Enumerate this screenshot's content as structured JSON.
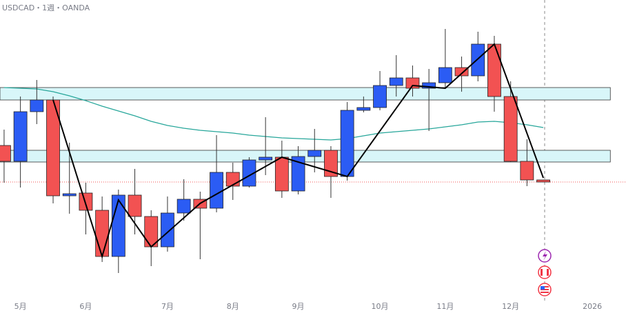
{
  "chart_data": {
    "type": "candlestick",
    "title": "USDCAD・1週・OANDA",
    "up_color": "#2b5cf4",
    "down_color": "#f25252",
    "open": [
      243,
      220,
      292,
      309,
      170,
      174,
      149,
      82,
      171,
      140,
      96,
      145,
      165,
      152,
      204,
      184,
      222,
      226,
      177,
      227,
      236,
      198,
      294,
      298,
      330,
      341,
      326,
      334,
      356,
      344,
      390,
      314,
      220,
      193
    ],
    "high": [
      266,
      314,
      338,
      314,
      247,
      189,
      169,
      179,
      209,
      149,
      169,
      194,
      176,
      258,
      218,
      226,
      284,
      250,
      242,
      267,
      242,
      306,
      314,
      351,
      374,
      359,
      354,
      412,
      372,
      408,
      402,
      336,
      252,
      193
    ],
    "low": [
      189,
      182,
      274,
      159,
      144,
      114,
      74,
      58,
      114,
      68,
      89,
      134,
      78,
      146,
      164,
      182,
      200,
      167,
      172,
      204,
      167,
      192,
      291,
      294,
      314,
      314,
      264,
      326,
      321,
      336,
      292,
      219,
      184,
      190
    ],
    "close": [
      220,
      292,
      309,
      170,
      173,
      149,
      82,
      171,
      140,
      96,
      145,
      165,
      152,
      204,
      184,
      222,
      226,
      177,
      227,
      236,
      198,
      294,
      298,
      330,
      341,
      326,
      334,
      356,
      344,
      390,
      314,
      220,
      193,
      190
    ],
    "moving_average": {
      "color": "#26a69a",
      "values": [
        327,
        326,
        325,
        321,
        315,
        308,
        300,
        293,
        286,
        278,
        272,
        268,
        265,
        263,
        261,
        258,
        256,
        254,
        253,
        252,
        251,
        253,
        257,
        261,
        263,
        265,
        267,
        270,
        273,
        277,
        278,
        276,
        273,
        269
      ]
    },
    "zigzag": {
      "color": "#000000",
      "x": [
        3,
        6,
        7,
        9,
        12,
        17,
        21,
        25,
        27,
        30,
        33
      ],
      "values": [
        309,
        82,
        164,
        96,
        159,
        226,
        198,
        330,
        326,
        390,
        196
      ]
    },
    "zones": [
      {
        "low": 309,
        "high": 327
      },
      {
        "low": 219,
        "high": 236
      }
    ],
    "zone_color": "#d8f6f9",
    "last_price": 190,
    "xlim": [
      -0.25,
      38.06
    ],
    "ylim": [
      0,
      454
    ],
    "xticks": [
      {
        "value": 1,
        "label": "5月"
      },
      {
        "value": 5,
        "label": "6月"
      },
      {
        "value": 10,
        "label": "7月"
      },
      {
        "value": 14,
        "label": "8月"
      },
      {
        "value": 18,
        "label": "9月"
      },
      {
        "value": 23,
        "label": "10月"
      },
      {
        "value": 27,
        "label": "11月"
      },
      {
        "value": 31,
        "label": "12月"
      },
      {
        "value": 36,
        "label": "2026"
      }
    ]
  }
}
